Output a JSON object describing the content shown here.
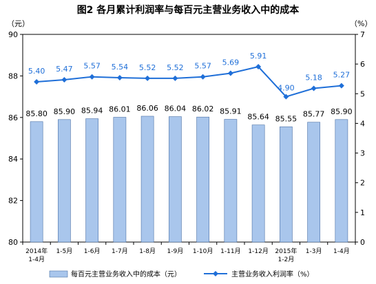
{
  "chart_data": {
    "type": "bar+line",
    "title": "图2  各月累计利润率与每百元主营业务收入中的成本",
    "y_left_unit": "（元）",
    "y_right_unit": "（%）",
    "y_left_ticks": [
      "80",
      "82",
      "84",
      "86",
      "88",
      "90"
    ],
    "y_right_ticks": [
      "0",
      "1",
      "2",
      "3",
      "4",
      "5",
      "6",
      "7"
    ],
    "ylim_left": [
      80,
      90
    ],
    "ylim_right": [
      0,
      7
    ],
    "categories": [
      [
        "2014年",
        "1-4月"
      ],
      [
        "1-5月"
      ],
      [
        "1-6月"
      ],
      [
        "1-7月"
      ],
      [
        "1-8月"
      ],
      [
        "1-9月"
      ],
      [
        "1-10月"
      ],
      [
        "1-11月"
      ],
      [
        "1-12月"
      ],
      [
        "2015年",
        "1-2月"
      ],
      [
        "1-3月"
      ],
      [
        "1-4月"
      ]
    ],
    "series": [
      {
        "name": "每百元主营业务收入中的成本（元）",
        "type": "bar",
        "axis": "left",
        "color": "#a9c6ec",
        "values": [
          85.8,
          85.9,
          85.94,
          86.01,
          86.06,
          86.04,
          86.02,
          85.91,
          85.64,
          85.55,
          85.77,
          85.9
        ],
        "labels": [
          "85.80",
          "85.90",
          "85.94",
          "86.01",
          "86.06",
          "86.04",
          "86.02",
          "85.91",
          "85.64",
          "85.55",
          "85.77",
          "85.90"
        ]
      },
      {
        "name": "主营业务收入利润率（%）",
        "type": "line",
        "axis": "right",
        "color": "#1f6fd8",
        "values": [
          5.4,
          5.47,
          5.57,
          5.54,
          5.52,
          5.52,
          5.57,
          5.69,
          5.91,
          4.9,
          5.18,
          5.27
        ],
        "labels": [
          "5.40",
          "5.47",
          "5.57",
          "5.54",
          "5.52",
          "5.52",
          "5.57",
          "5.69",
          "5.91",
          "4.90",
          "5.18",
          "5.27"
        ]
      }
    ]
  }
}
